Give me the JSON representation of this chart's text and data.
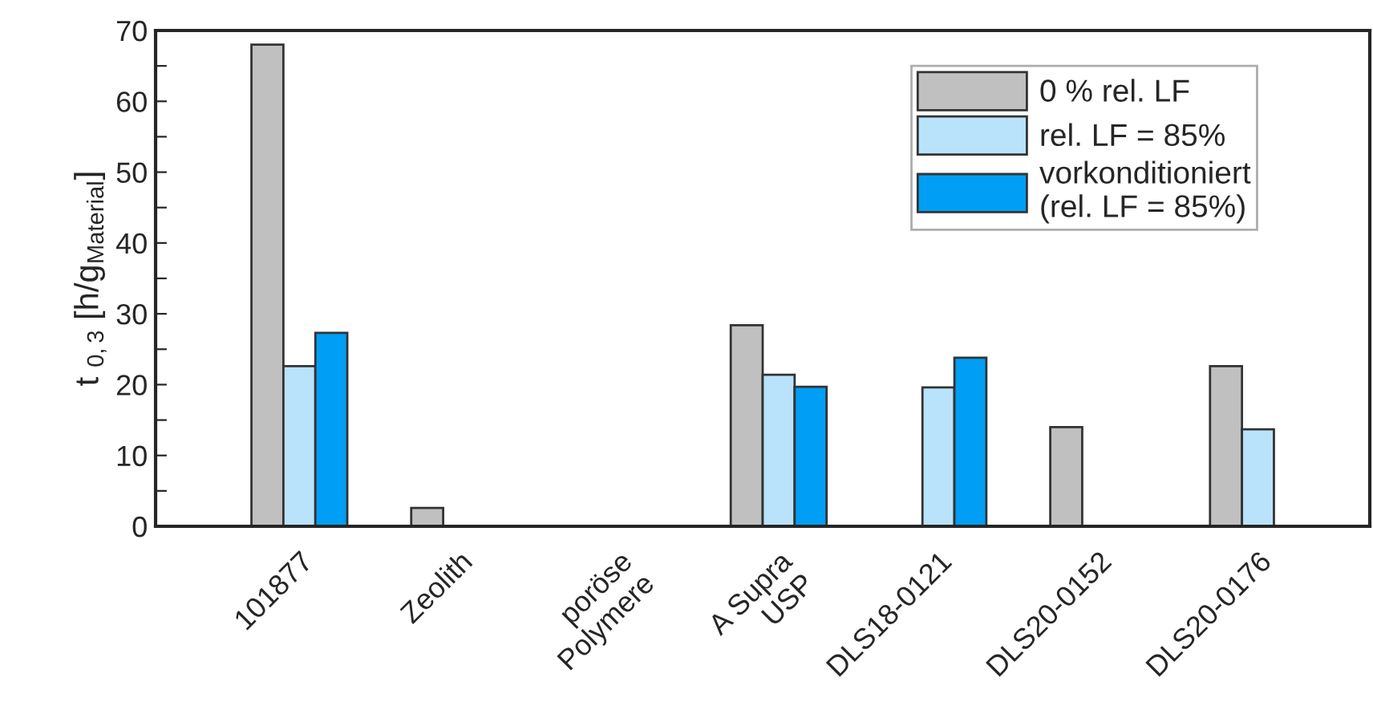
{
  "chart_data": {
    "type": "bar",
    "ylabel": "t $_{0,3}$ [h/g$_{Material}$]",
    "categories": [
      "101877",
      "Zeolith",
      "poröse\nPolymere",
      "A Supra\nUSP",
      "DLS18-0121",
      "DLS20-0152",
      "DLS20-0176"
    ],
    "series": [
      {
        "name": "0 % rel. LF",
        "color": "#c0c0c0",
        "values": [
          68,
          2.6,
          null,
          28.4,
          null,
          14,
          22.6
        ]
      },
      {
        "name": "rel. LF = 85%",
        "color": "#b9e3fb",
        "values": [
          22.6,
          null,
          null,
          21.4,
          19.6,
          null,
          13.7
        ]
      },
      {
        "name": "vorkonditioniert\n(rel. LF = 85%)",
        "color": "#009ef5",
        "values": [
          27.3,
          null,
          null,
          19.7,
          23.8,
          null,
          null
        ]
      }
    ],
    "ylim": [
      0,
      70
    ],
    "yticks": [
      0,
      {
        "value": 5,
        "label": null
      },
      10,
      {
        "value": 15,
        "label": null
      },
      20,
      {
        "value": 25,
        "label": null
      },
      30,
      {
        "value": 35,
        "label": null
      },
      40,
      {
        "value": 45,
        "label": null
      },
      50,
      {
        "value": 55,
        "label": null
      },
      60,
      {
        "value": 65,
        "label": null
      },
      70
    ],
    "grid": false,
    "legend": "top right"
  }
}
